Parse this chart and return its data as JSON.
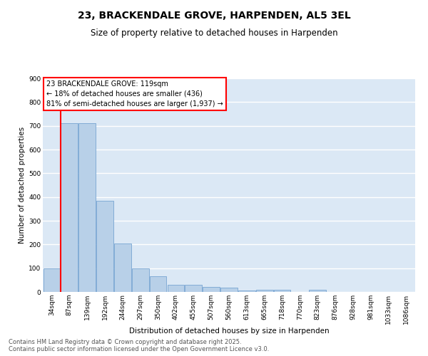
{
  "title": "23, BRACKENDALE GROVE, HARPENDEN, AL5 3EL",
  "subtitle": "Size of property relative to detached houses in Harpenden",
  "xlabel": "Distribution of detached houses by size in Harpenden",
  "ylabel": "Number of detached properties",
  "categories": [
    "34sqm",
    "87sqm",
    "139sqm",
    "192sqm",
    "244sqm",
    "297sqm",
    "350sqm",
    "402sqm",
    "455sqm",
    "507sqm",
    "560sqm",
    "613sqm",
    "665sqm",
    "718sqm",
    "770sqm",
    "823sqm",
    "876sqm",
    "928sqm",
    "981sqm",
    "1033sqm",
    "1086sqm"
  ],
  "values": [
    100,
    710,
    710,
    385,
    205,
    100,
    65,
    30,
    30,
    20,
    17,
    5,
    8,
    8,
    0,
    8,
    0,
    0,
    0,
    0,
    0
  ],
  "bar_color": "#b8d0e8",
  "bar_edge_color": "#6699cc",
  "vline_color": "red",
  "vline_index": 1,
  "annotation_text": "23 BRACKENDALE GROVE: 119sqm\n← 18% of detached houses are smaller (436)\n81% of semi-detached houses are larger (1,937) →",
  "plot_bg_color": "#dbe8f5",
  "ylim": [
    0,
    900
  ],
  "yticks": [
    0,
    100,
    200,
    300,
    400,
    500,
    600,
    700,
    800,
    900
  ],
  "footer": "Contains HM Land Registry data © Crown copyright and database right 2025.\nContains public sector information licensed under the Open Government Licence v3.0.",
  "title_fontsize": 10,
  "subtitle_fontsize": 8.5,
  "axis_label_fontsize": 7.5,
  "tick_fontsize": 6.5,
  "annotation_fontsize": 7,
  "footer_fontsize": 6
}
